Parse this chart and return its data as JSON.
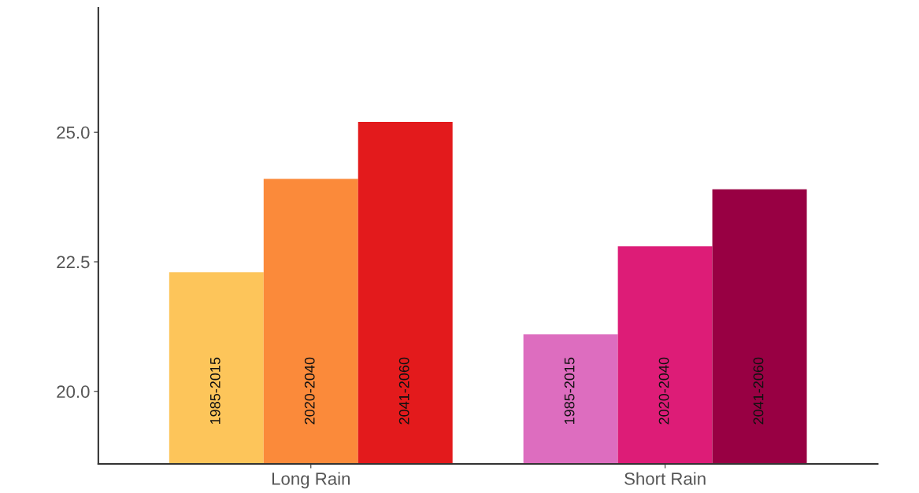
{
  "chart_data": {
    "type": "bar",
    "categories": [
      "Long Rain",
      "Short Rain"
    ],
    "series": [
      {
        "name": "1985-2015",
        "colors": [
          "#fdc55a",
          "#dd6dbf"
        ],
        "values": [
          22.3,
          21.1
        ]
      },
      {
        "name": "2020-2040",
        "colors": [
          "#fb8a3a",
          "#dd1c77"
        ],
        "values": [
          24.1,
          22.8
        ]
      },
      {
        "name": "2041-2060",
        "colors": [
          "#e31a1c",
          "#980043"
        ],
        "values": [
          25.2,
          23.9
        ]
      }
    ],
    "ylim": [
      18.6,
      27.4
    ],
    "yticks": [
      {
        "value": 20,
        "label": "20.0"
      },
      {
        "value": 22.5,
        "label": "22.5"
      },
      {
        "value": 25,
        "label": "25.0"
      }
    ],
    "grid": false,
    "legend": false
  }
}
